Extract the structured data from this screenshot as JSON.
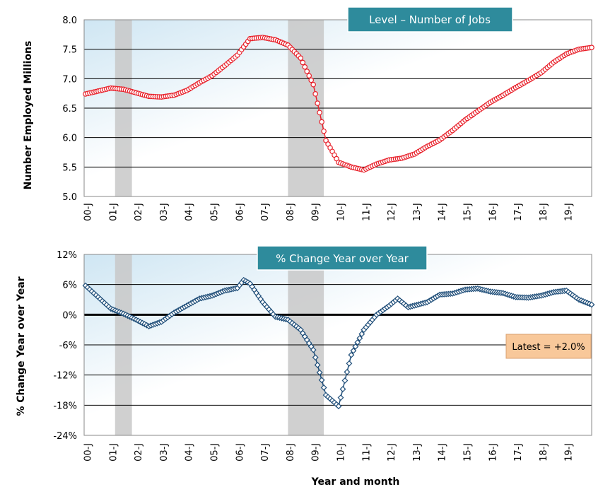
{
  "chart_data": [
    {
      "type": "line",
      "title": "Level – Number of Jobs",
      "ylabel": "Number Employed Millions",
      "xlabel": "",
      "ylim": [
        5.0,
        8.0
      ],
      "yticks": [
        "5.0",
        "5.5",
        "6.0",
        "6.5",
        "7.0",
        "7.5",
        "8.0"
      ],
      "xticks": [
        "00-J",
        "01-J",
        "02-J",
        "03-J",
        "04-J",
        "05-J",
        "06-J",
        "07-J",
        "08-J",
        "09-J",
        "10-J",
        "11-J",
        "12-J",
        "13-J",
        "14-J",
        "15-J",
        "16-J",
        "17-J",
        "18-J",
        "19-J"
      ],
      "x_start": "2000-01",
      "frequency": "monthly",
      "recessions": [
        [
          "2001-03",
          "2001-11"
        ],
        [
          "2008-01",
          "2009-06"
        ]
      ],
      "grid": true,
      "colors": {
        "series": "#e8202a",
        "marker_fill": "#ffffff",
        "recession": "#c8c8c8",
        "title_box": "#2e8b9c"
      },
      "series_anchors": [
        {
          "x": "2000-01",
          "y": 6.74
        },
        {
          "x": "2000-07",
          "y": 6.79
        },
        {
          "x": "2001-01",
          "y": 6.84
        },
        {
          "x": "2001-07",
          "y": 6.82
        },
        {
          "x": "2002-01",
          "y": 6.76
        },
        {
          "x": "2002-07",
          "y": 6.7
        },
        {
          "x": "2003-01",
          "y": 6.69
        },
        {
          "x": "2003-07",
          "y": 6.72
        },
        {
          "x": "2004-01",
          "y": 6.8
        },
        {
          "x": "2004-07",
          "y": 6.93
        },
        {
          "x": "2005-01",
          "y": 7.05
        },
        {
          "x": "2005-07",
          "y": 7.22
        },
        {
          "x": "2006-01",
          "y": 7.4
        },
        {
          "x": "2006-07",
          "y": 7.68
        },
        {
          "x": "2007-01",
          "y": 7.7
        },
        {
          "x": "2007-07",
          "y": 7.66
        },
        {
          "x": "2008-01",
          "y": 7.57
        },
        {
          "x": "2008-07",
          "y": 7.35
        },
        {
          "x": "2009-01",
          "y": 6.9
        },
        {
          "x": "2009-07",
          "y": 5.95
        },
        {
          "x": "2010-01",
          "y": 5.58
        },
        {
          "x": "2010-07",
          "y": 5.5
        },
        {
          "x": "2011-01",
          "y": 5.45
        },
        {
          "x": "2011-07",
          "y": 5.55
        },
        {
          "x": "2012-01",
          "y": 5.62
        },
        {
          "x": "2012-07",
          "y": 5.65
        },
        {
          "x": "2013-01",
          "y": 5.72
        },
        {
          "x": "2013-07",
          "y": 5.85
        },
        {
          "x": "2014-01",
          "y": 5.96
        },
        {
          "x": "2014-07",
          "y": 6.12
        },
        {
          "x": "2015-01",
          "y": 6.3
        },
        {
          "x": "2015-07",
          "y": 6.45
        },
        {
          "x": "2016-01",
          "y": 6.6
        },
        {
          "x": "2016-07",
          "y": 6.72
        },
        {
          "x": "2017-01",
          "y": 6.85
        },
        {
          "x": "2017-07",
          "y": 6.97
        },
        {
          "x": "2018-01",
          "y": 7.1
        },
        {
          "x": "2018-07",
          "y": 7.28
        },
        {
          "x": "2019-01",
          "y": 7.42
        },
        {
          "x": "2019-07",
          "y": 7.5
        },
        {
          "x": "2020-01",
          "y": 7.53
        }
      ]
    },
    {
      "type": "line",
      "title": "% Change Year over Year",
      "ylabel": "% Change Year over Year",
      "xlabel": "Year and month",
      "ylim": [
        -24,
        12
      ],
      "yticks": [
        "-24%",
        "-18%",
        "-12%",
        "-6%",
        "0%",
        "6%",
        "12%"
      ],
      "xticks": [
        "00-J",
        "01-J",
        "02-J",
        "03-J",
        "04-J",
        "05-J",
        "06-J",
        "07-J",
        "08-J",
        "09-J",
        "10-J",
        "11-J",
        "12-J",
        "13-J",
        "14-J",
        "15-J",
        "16-J",
        "17-J",
        "18-J",
        "19-J"
      ],
      "x_start": "2000-01",
      "frequency": "monthly",
      "recessions": [
        [
          "2001-03",
          "2001-11"
        ],
        [
          "2008-01",
          "2009-06"
        ]
      ],
      "grid": true,
      "annotation": "Latest = +2.0%",
      "colors": {
        "series": "#1f4e79",
        "marker_fill": "#ffffff",
        "recession": "#c8c8c8",
        "title_box": "#2e8b9c",
        "annotation_box": "#f8c89a"
      },
      "series_anchors": [
        {
          "x": "2000-01",
          "y": 5.8
        },
        {
          "x": "2000-07",
          "y": 3.5
        },
        {
          "x": "2001-01",
          "y": 1.2
        },
        {
          "x": "2001-07",
          "y": 0.2
        },
        {
          "x": "2002-01",
          "y": -1.0
        },
        {
          "x": "2002-07",
          "y": -2.3
        },
        {
          "x": "2003-01",
          "y": -1.4
        },
        {
          "x": "2003-07",
          "y": 0.4
        },
        {
          "x": "2004-01",
          "y": 1.8
        },
        {
          "x": "2004-07",
          "y": 3.2
        },
        {
          "x": "2005-01",
          "y": 3.8
        },
        {
          "x": "2005-07",
          "y": 4.8
        },
        {
          "x": "2006-01",
          "y": 5.3
        },
        {
          "x": "2006-04",
          "y": 6.9
        },
        {
          "x": "2006-07",
          "y": 6.2
        },
        {
          "x": "2007-01",
          "y": 2.5
        },
        {
          "x": "2007-07",
          "y": -0.4
        },
        {
          "x": "2008-01",
          "y": -1.0
        },
        {
          "x": "2008-07",
          "y": -3.0
        },
        {
          "x": "2009-01",
          "y": -7.0
        },
        {
          "x": "2009-07",
          "y": -16.0
        },
        {
          "x": "2010-01",
          "y": -18.2
        },
        {
          "x": "2010-07",
          "y": -8.0
        },
        {
          "x": "2011-01",
          "y": -3.0
        },
        {
          "x": "2011-07",
          "y": 0.0
        },
        {
          "x": "2012-01",
          "y": 1.8
        },
        {
          "x": "2012-05",
          "y": 3.2
        },
        {
          "x": "2012-10",
          "y": 1.5
        },
        {
          "x": "2013-07",
          "y": 2.5
        },
        {
          "x": "2014-01",
          "y": 4.0
        },
        {
          "x": "2014-07",
          "y": 4.2
        },
        {
          "x": "2015-01",
          "y": 5.0
        },
        {
          "x": "2015-07",
          "y": 5.2
        },
        {
          "x": "2016-01",
          "y": 4.6
        },
        {
          "x": "2016-07",
          "y": 4.3
        },
        {
          "x": "2017-01",
          "y": 3.5
        },
        {
          "x": "2017-07",
          "y": 3.4
        },
        {
          "x": "2018-01",
          "y": 3.8
        },
        {
          "x": "2018-07",
          "y": 4.5
        },
        {
          "x": "2019-01",
          "y": 4.8
        },
        {
          "x": "2019-07",
          "y": 3.0
        },
        {
          "x": "2020-01",
          "y": 2.0
        }
      ]
    }
  ]
}
